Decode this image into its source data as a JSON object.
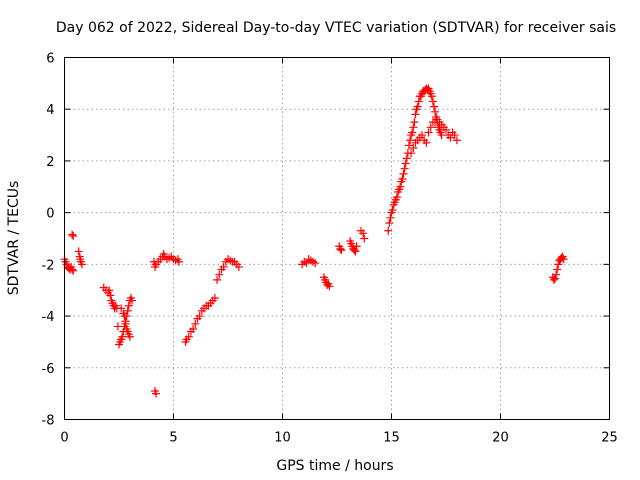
{
  "chart_data": {
    "type": "scatter",
    "title": "Day 062 of 2022, Sidereal Day-to-day VTEC variation (SDTVAR) for receiver sais",
    "xlabel": "GPS time / hours",
    "ylabel": "SDTVAR / TECUs",
    "xlim": [
      0,
      25
    ],
    "ylim": [
      -8,
      6
    ],
    "xticks": [
      "0",
      "5",
      "10",
      "15",
      "20",
      "25"
    ],
    "yticks": [
      "-8",
      "-6",
      "-4",
      "-2",
      "0",
      "2",
      "4",
      "6"
    ],
    "grid": true,
    "marker": "plus",
    "color": "#ff0000",
    "segments": [
      {
        "name": "seg-0",
        "x": [
          0.0,
          0.05,
          0.1,
          0.15,
          0.2,
          0.25,
          0.3,
          0.35,
          0.4
        ],
        "y": [
          -1.8,
          -1.9,
          -2.0,
          -2.1,
          -2.15,
          -2.2,
          -2.1,
          -2.2,
          -2.25
        ]
      },
      {
        "name": "seg-1",
        "x": [
          0.35,
          0.4
        ],
        "y": [
          -0.85,
          -0.9
        ]
      },
      {
        "name": "seg-2",
        "x": [
          0.65,
          0.7,
          0.72,
          0.75,
          0.8
        ],
        "y": [
          -1.5,
          -1.7,
          -1.8,
          -1.9,
          -2.0
        ]
      },
      {
        "name": "seg-3",
        "x": [
          1.8,
          1.9,
          2.0,
          2.05,
          2.1,
          2.15,
          2.2,
          2.25,
          2.3,
          2.35,
          2.4,
          2.45,
          2.5,
          2.55,
          2.6,
          2.65,
          2.7,
          2.75,
          2.8,
          2.85,
          2.9,
          2.95,
          3.0,
          3.05,
          3.1
        ],
        "y": [
          -2.9,
          -3.0,
          -3.1,
          -3.0,
          -3.2,
          -3.4,
          -3.5,
          -3.6,
          -3.7,
          -3.6,
          -3.7,
          -4.4,
          -5.1,
          -5.0,
          -4.9,
          -4.8,
          -4.6,
          -4.4,
          -4.2,
          -4.0,
          -3.8,
          -3.6,
          -3.4,
          -3.3,
          -3.4
        ]
      },
      {
        "name": "seg-4",
        "x": [
          2.6,
          2.7,
          2.75,
          2.8,
          2.85,
          2.9,
          2.95,
          3.0
        ],
        "y": [
          -3.7,
          -3.9,
          -4.0,
          -4.3,
          -4.5,
          -4.6,
          -4.7,
          -4.8
        ]
      },
      {
        "name": "seg-5",
        "x": [
          4.15,
          4.2
        ],
        "y": [
          -6.9,
          -7.0
        ]
      },
      {
        "name": "seg-6",
        "x": [
          4.1,
          4.15,
          4.2,
          4.3,
          4.4,
          4.5,
          4.55,
          4.6,
          4.7,
          4.8,
          4.9,
          5.0,
          5.1,
          5.2,
          5.25
        ],
        "y": [
          -1.9,
          -2.1,
          -2.0,
          -1.9,
          -1.8,
          -1.7,
          -1.6,
          -1.7,
          -1.8,
          -1.75,
          -1.7,
          -1.8,
          -1.85,
          -1.8,
          -1.9
        ]
      },
      {
        "name": "seg-7",
        "x": [
          5.55,
          5.6,
          5.7,
          5.8,
          5.9,
          6.0,
          6.1,
          6.2,
          6.3,
          6.4,
          6.5,
          6.6,
          6.7,
          6.8,
          6.9,
          7.0,
          7.1,
          7.2,
          7.3,
          7.4,
          7.5,
          7.6,
          7.7,
          7.8,
          7.9,
          8.0
        ],
        "y": [
          -5.0,
          -4.9,
          -4.8,
          -4.6,
          -4.5,
          -4.3,
          -4.1,
          -4.0,
          -3.8,
          -3.7,
          -3.6,
          -3.6,
          -3.5,
          -3.4,
          -3.3,
          -2.6,
          -2.4,
          -2.2,
          -2.1,
          -1.9,
          -1.8,
          -1.85,
          -1.9,
          -1.9,
          -2.0,
          -2.1
        ]
      },
      {
        "name": "seg-8",
        "x": [
          10.9,
          11.0,
          11.1,
          11.2,
          11.3,
          11.4,
          11.5
        ],
        "y": [
          -2.0,
          -1.9,
          -1.95,
          -1.8,
          -1.85,
          -1.9,
          -1.95
        ]
      },
      {
        "name": "seg-9",
        "x": [
          11.9,
          11.95,
          12.0,
          12.05,
          12.1,
          12.15
        ],
        "y": [
          -2.5,
          -2.6,
          -2.7,
          -2.8,
          -2.75,
          -2.85
        ]
      },
      {
        "name": "seg-10",
        "x": [
          12.6,
          12.65,
          12.7
        ],
        "y": [
          -1.3,
          -1.4,
          -1.45
        ]
      },
      {
        "name": "seg-11",
        "x": [
          13.1,
          13.15,
          13.2,
          13.25,
          13.3,
          13.35,
          13.4
        ],
        "y": [
          -1.1,
          -1.2,
          -1.3,
          -1.4,
          -1.45,
          -1.5,
          -1.3
        ]
      },
      {
        "name": "seg-12",
        "x": [
          13.6,
          13.7,
          13.75
        ],
        "y": [
          -0.7,
          -0.8,
          -1.0
        ]
      },
      {
        "name": "seg-13",
        "x": [
          14.85,
          14.9,
          14.95,
          15.0,
          15.05,
          15.1,
          15.15,
          15.2,
          15.25,
          15.3,
          15.35,
          15.4,
          15.45,
          15.5,
          15.55,
          15.6,
          15.65,
          15.7,
          15.75,
          15.8,
          15.85,
          15.9,
          15.95,
          16.0,
          16.05,
          16.1,
          16.15,
          16.2,
          16.25,
          16.3,
          16.35,
          16.4,
          16.45,
          16.5,
          16.55,
          16.6,
          16.65,
          16.7,
          16.75,
          16.8,
          16.85,
          16.9,
          16.95,
          17.0,
          17.05,
          17.1,
          17.15,
          17.2,
          17.25,
          17.3
        ],
        "y": [
          -0.7,
          -0.4,
          -0.2,
          0.0,
          0.1,
          0.3,
          0.4,
          0.5,
          0.6,
          0.8,
          0.9,
          1.0,
          1.2,
          1.3,
          1.5,
          1.7,
          1.9,
          2.1,
          2.3,
          2.6,
          2.8,
          3.0,
          3.1,
          3.3,
          3.5,
          3.8,
          4.0,
          4.1,
          4.3,
          4.5,
          4.5,
          4.6,
          4.7,
          4.7,
          4.75,
          4.8,
          4.75,
          4.8,
          4.7,
          4.6,
          4.5,
          4.3,
          4.1,
          3.9,
          3.7,
          3.5,
          3.3,
          3.2,
          3.1,
          3.0
        ]
      },
      {
        "name": "seg-14",
        "x": [
          15.9,
          16.0,
          16.1,
          16.2,
          16.3,
          16.4,
          16.5,
          16.6,
          16.7,
          16.8,
          16.9,
          17.0,
          17.1,
          17.2,
          17.3,
          17.4,
          17.5,
          17.6,
          17.7,
          17.8,
          17.9,
          18.0
        ],
        "y": [
          2.3,
          2.5,
          2.7,
          2.8,
          2.9,
          3.0,
          2.8,
          2.7,
          3.1,
          3.3,
          3.5,
          3.5,
          3.6,
          3.5,
          3.4,
          3.3,
          3.2,
          3.0,
          2.9,
          3.1,
          3.0,
          2.8
        ]
      },
      {
        "name": "seg-15",
        "x": [
          22.4,
          22.45,
          22.5,
          22.55,
          22.6,
          22.65,
          22.7,
          22.75,
          22.8,
          22.85,
          22.9
        ],
        "y": [
          -2.5,
          -2.6,
          -2.55,
          -2.4,
          -2.2,
          -2.0,
          -1.85,
          -1.8,
          -1.75,
          -1.7,
          -1.8
        ]
      }
    ]
  }
}
